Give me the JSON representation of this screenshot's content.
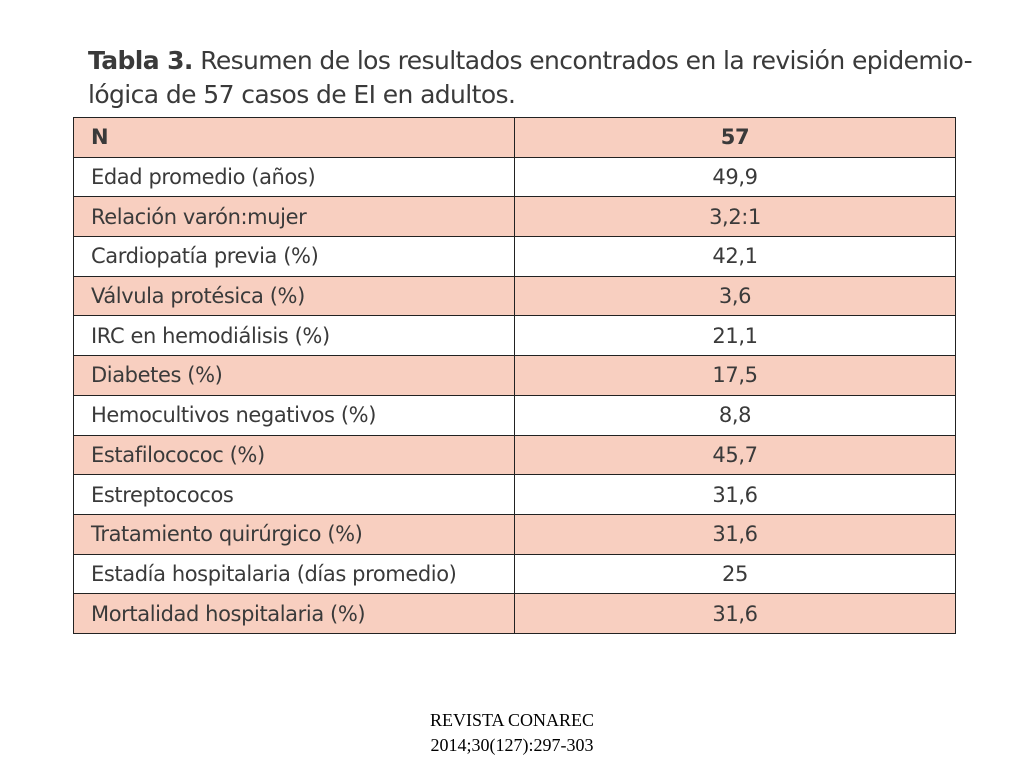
{
  "title": {
    "label": "Tabla 3.",
    "lines": [
      "Resumen de los resultados encontrados en la revisión epidemio-",
      "lógica de 57 casos de EI en adultos."
    ]
  },
  "table": {
    "header": [
      "N",
      "57"
    ],
    "rows": [
      [
        "Edad promedio (años)",
        "49,9"
      ],
      [
        "Relación varón:mujer",
        "3,2:1"
      ],
      [
        "Cardiopatía previa (%)",
        "42,1"
      ],
      [
        "Válvula protésica (%)",
        "3,6"
      ],
      [
        "IRC en hemodiálisis (%)",
        "21,1"
      ],
      [
        "Diabetes (%)",
        "17,5"
      ],
      [
        "Hemocultivos negativos (%)",
        "8,8"
      ],
      [
        "Estafilocococ (%)",
        "45,7"
      ],
      [
        "Estreptococos",
        "31,6"
      ],
      [
        "Tratamiento quirúrgico (%)",
        "31,6"
      ],
      [
        "Estadía hospitalaria (días promedio)",
        "25"
      ],
      [
        "Mortalidad hospitalaria (%)",
        "31,6"
      ]
    ]
  },
  "footer": [
    "REVISTA CONAREC",
    "2014;30(127):297-303"
  ]
}
